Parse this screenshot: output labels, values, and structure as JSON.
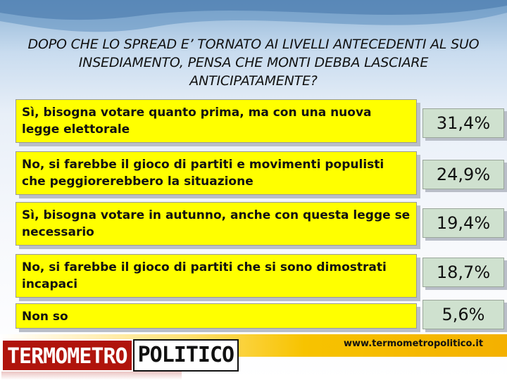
{
  "question": "DOPO CHE LO SPREAD E’ TORNATO AI LIVELLI ANTECEDENTI AL SUO INSEDIAMENTO, PENSA CHE MONTI DEBBA LASCIARE ANTICIPATAMENTE?",
  "chart_data": {
    "type": "table",
    "title": "DOPO CHE LO SPREAD E’ TORNATO AI LIVELLI ANTECEDENTI AL SUO INSEDIAMENTO, PENSA CHE MONTI DEBBA LASCIARE ANTICIPATAMENTE?",
    "rows": [
      {
        "label": "Sì, bisogna votare quanto prima, ma con una nuova legge elettorale",
        "value": 31.4,
        "display": "31,4%"
      },
      {
        "label": "No, si farebbe il gioco di partiti e movimenti populisti che peggiorerebbero la situazione",
        "value": 24.9,
        "display": "24,9%"
      },
      {
        "label": "Sì, bisogna votare in autunno, anche con questa legge se necessario",
        "value": 19.4,
        "display": "19,4%"
      },
      {
        "label": "No, si farebbe il gioco di partiti che si sono dimostrati incapaci",
        "value": 18.7,
        "display": "18,7%"
      },
      {
        "label": "Non so",
        "value": 5.6,
        "display": "5,6%"
      }
    ]
  },
  "footer": {
    "url": "www.termometropolitico.it",
    "logo_left": "TERMOMETRO",
    "logo_right": "POLITICO"
  },
  "colors": {
    "answer_fill": "#ffff00",
    "value_fill": "#cfe1cf",
    "logo_red": "#b0140c",
    "band_yellow": "#f7c300"
  }
}
